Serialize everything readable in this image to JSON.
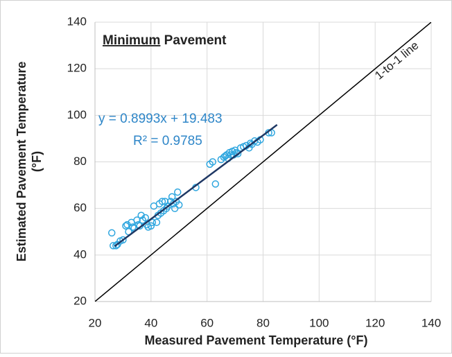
{
  "chart_data": {
    "type": "scatter",
    "title": {
      "emphasis": "Minimum",
      "text": "Pavement"
    },
    "xlabel": "Measured Pavement Temperature (°F)",
    "ylabel": "Estimated Pavement Temperature (°F)",
    "xlim": [
      20,
      140
    ],
    "ylim": [
      20,
      140
    ],
    "xticks": [
      20,
      40,
      60,
      80,
      100,
      120,
      140
    ],
    "yticks": [
      20,
      40,
      60,
      80,
      100,
      120,
      140
    ],
    "grid": true,
    "series": [
      {
        "color": "#2ea6df",
        "x": [
          26,
          26.5,
          27.5,
          28,
          29,
          30,
          31,
          31.5,
          32,
          33,
          33.5,
          34,
          35,
          35.5,
          36,
          36.5,
          37,
          38,
          38.5,
          39,
          40,
          40.5,
          41,
          42,
          42.5,
          43,
          43.5,
          44,
          44.5,
          45,
          45.5,
          46,
          47,
          47.5,
          48,
          48.5,
          49,
          49.5,
          50,
          56,
          61,
          62,
          63,
          65,
          66,
          66.5,
          67,
          67.5,
          68,
          68.5,
          69,
          69.5,
          70,
          70.5,
          71,
          72,
          73,
          74,
          75,
          75.5,
          76,
          77,
          78,
          79,
          82,
          83
        ],
        "values": [
          49.5,
          44,
          44,
          44.5,
          46,
          46.5,
          52.5,
          53,
          50,
          54,
          52,
          51.5,
          55,
          53,
          52.5,
          57,
          55,
          56,
          53,
          52,
          52.5,
          54,
          61,
          54,
          57,
          62,
          58,
          63,
          59,
          63,
          60,
          61,
          63,
          65,
          62,
          60,
          63,
          67,
          61.5,
          69,
          79,
          80,
          70.5,
          81,
          82,
          82.5,
          83,
          81.5,
          84,
          83,
          84.5,
          83,
          85,
          84,
          83.5,
          86,
          86.5,
          87,
          86,
          88,
          87.5,
          89,
          88.5,
          89.5,
          92.5,
          92.5
        ]
      }
    ],
    "trendline": {
      "label": "y = 0.8993x + 19.483",
      "r2_label": "R² = 0.9785",
      "slope": 0.8993,
      "intercept": 19.483,
      "xrange": [
        27,
        85
      ],
      "color": "#1f3864",
      "label_color": "#2e86c8"
    },
    "reference_line": {
      "label": "1-to-1 line",
      "slope": 1,
      "intercept": 0,
      "color": "#000000"
    }
  }
}
